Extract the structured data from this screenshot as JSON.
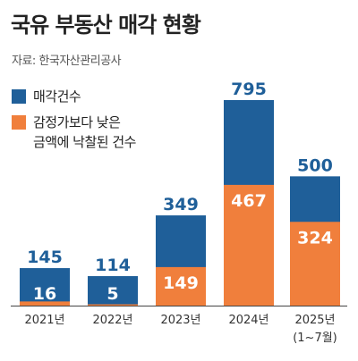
{
  "title": "국유 부동산 매각 현황",
  "source": "자료: 한국자산관리공사",
  "colors": {
    "total": "#1f5f99",
    "below": "#f07f3c",
    "label_total": "#1f5f99",
    "label_inside": "#ffffff",
    "axis": "#444444"
  },
  "legend": [
    {
      "label_lines": [
        "매각건수"
      ],
      "color": "#1f5f99"
    },
    {
      "label_lines": [
        "감정가보다 낮은",
        "금액에 낙찰된 건수"
      ],
      "color": "#f07f3c"
    }
  ],
  "chart_data": {
    "type": "bar",
    "categories": [
      "2021년",
      "2022년",
      "2023년",
      "2024년",
      "2025년"
    ],
    "category_sublabels": [
      "",
      "",
      "",
      "",
      "(1~7월)"
    ],
    "series": [
      {
        "name": "매각건수",
        "values": [
          145,
          114,
          349,
          795,
          500
        ]
      },
      {
        "name": "감정가보다 낮은 금액에 낙찰된 건수",
        "values": [
          16,
          5,
          149,
          467,
          324
        ]
      }
    ],
    "stacking": "overlay",
    "title": "국유 부동산 매각 현황",
    "xlabel": "",
    "ylabel": "",
    "ylim": [
      0,
      795
    ],
    "grid": false,
    "legend_position": "top-left"
  }
}
